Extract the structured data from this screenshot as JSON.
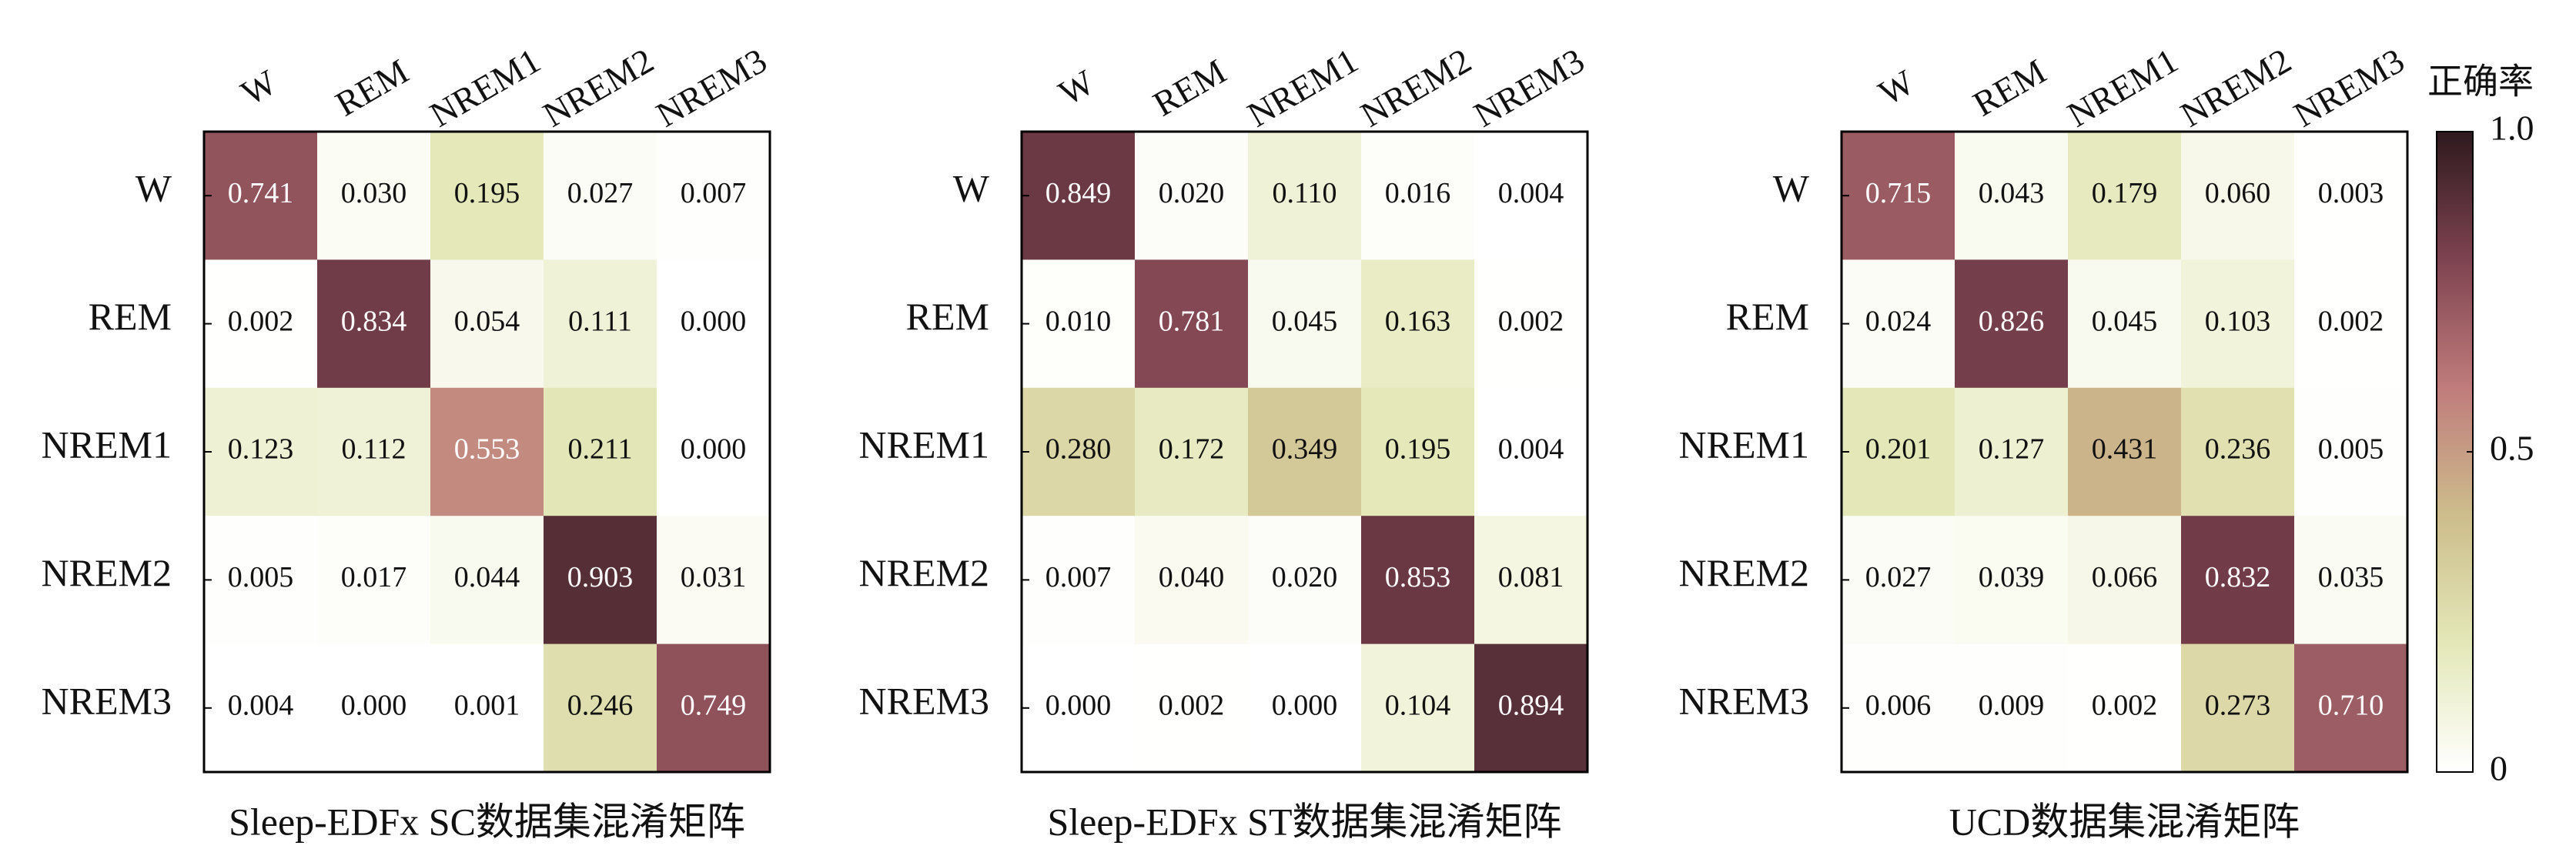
{
  "chart_data": [
    {
      "type": "heatmap",
      "title": "Sleep-EDFx SC数据集混淆矩阵",
      "categories": [
        "W",
        "REM",
        "NREM1",
        "NREM2",
        "NREM3"
      ],
      "y_categories": [
        "W",
        "REM",
        "NREM1",
        "NREM2",
        "NREM3"
      ],
      "values": [
        [
          0.741,
          0.03,
          0.195,
          0.027,
          0.007
        ],
        [
          0.002,
          0.834,
          0.054,
          0.111,
          0
        ],
        [
          0.123,
          0.112,
          0.553,
          0.211,
          0
        ],
        [
          0.005,
          0.017,
          0.044,
          0.903,
          0.031
        ],
        [
          0.004,
          0,
          0.001,
          0.246,
          0.749
        ]
      ],
      "value_labels": [
        [
          "0.741",
          "0.030",
          "0.195",
          "0.027",
          "0.007"
        ],
        [
          "0.002",
          "0.834",
          "0.054",
          "0.111",
          "0.000"
        ],
        [
          "0.123",
          "0.112",
          "0.553",
          "0.211",
          "0.000"
        ],
        [
          "0.005",
          "0.017",
          "0.044",
          "0.903",
          "0.031"
        ],
        [
          "0.004",
          "0.000",
          "0.001",
          "0.246",
          "0.749"
        ]
      ],
      "colormap": [
        "#ffffff",
        "#e4e8b8",
        "#cdbd8c",
        "#c07c7c",
        "#7e4350",
        "#2e1a1e"
      ]
    },
    {
      "type": "heatmap",
      "title": "Sleep-EDFx ST数据集混淆矩阵",
      "categories": [
        "W",
        "REM",
        "NREM1",
        "NREM2",
        "NREM3"
      ],
      "y_categories": [
        "W",
        "REM",
        "NREM1",
        "NREM2",
        "NREM3"
      ],
      "values": [
        [
          0.849,
          0.02,
          0.11,
          0.016,
          0.004
        ],
        [
          0.01,
          0.781,
          0.045,
          0.163,
          0.002
        ],
        [
          0.28,
          0.172,
          0.349,
          0.195,
          0.004
        ],
        [
          0.007,
          0.04,
          0.02,
          0.853,
          0.081
        ],
        [
          0,
          0.002,
          0,
          0.104,
          0.894
        ]
      ],
      "value_labels": [
        [
          "0.849",
          "0.020",
          "0.110",
          "0.016",
          "0.004"
        ],
        [
          "0.010",
          "0.781",
          "0.045",
          "0.163",
          "0.002"
        ],
        [
          "0.280",
          "0.172",
          "0.349",
          "0.195",
          "0.004"
        ],
        [
          "0.007",
          "0.040",
          "0.020",
          "0.853",
          "0.081"
        ],
        [
          "0.000",
          "0.002",
          "0.000",
          "0.104",
          "0.894"
        ]
      ],
      "colormap": [
        "#ffffff",
        "#e4e8b8",
        "#cdbd8c",
        "#c07c7c",
        "#7e4350",
        "#2e1a1e"
      ]
    },
    {
      "type": "heatmap",
      "title": "UCD数据集混淆矩阵",
      "categories": [
        "W",
        "REM",
        "NREM1",
        "NREM2",
        "NREM3"
      ],
      "y_categories": [
        "W",
        "REM",
        "NREM1",
        "NREM2",
        "NREM3"
      ],
      "values": [
        [
          0.715,
          0.043,
          0.179,
          0.06,
          0.003
        ],
        [
          0.024,
          0.826,
          0.045,
          0.103,
          0.002
        ],
        [
          0.201,
          0.127,
          0.431,
          0.236,
          0.005
        ],
        [
          0.027,
          0.039,
          0.066,
          0.832,
          0.035
        ],
        [
          0.006,
          0.009,
          0.002,
          0.273,
          0.71
        ]
      ],
      "value_labels": [
        [
          "0.715",
          "0.043",
          "0.179",
          "0.060",
          "0.003"
        ],
        [
          "0.024",
          "0.826",
          "0.045",
          "0.103",
          "0.002"
        ],
        [
          "0.201",
          "0.127",
          "0.431",
          "0.236",
          "0.005"
        ],
        [
          "0.027",
          "0.039",
          "0.066",
          "0.832",
          "0.035"
        ],
        [
          "0.006",
          "0.009",
          "0.002",
          "0.273",
          "0.710"
        ]
      ],
      "colormap": [
        "#ffffff",
        "#e4e8b8",
        "#cdbd8c",
        "#c07c7c",
        "#7e4350",
        "#2e1a1e"
      ],
      "colorbar": {
        "label": "正确率",
        "lim": [
          0,
          1
        ],
        "ticks": [
          0,
          0.5,
          {
            "value": 1,
            "label": "1.0"
          }
        ]
      }
    }
  ]
}
